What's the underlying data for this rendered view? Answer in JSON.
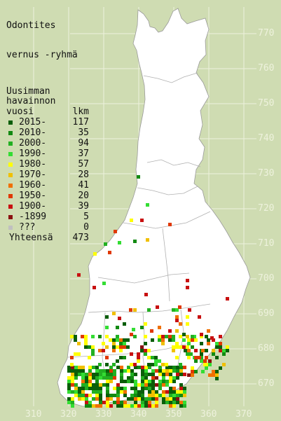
{
  "title_lines": [
    "Odontites",
    "vernus -ryhmä"
  ],
  "legend": {
    "header_lines": [
      "Uusimman",
      "havainnon"
    ],
    "col_year": "vuosi",
    "col_count": "lkm",
    "items": [
      {
        "label": "2015-",
        "count": "117",
        "color": "#0a5e0a"
      },
      {
        "label": "2010-",
        "count": "35",
        "color": "#128a12"
      },
      {
        "label": "2000-",
        "count": "94",
        "color": "#22b022"
      },
      {
        "label": "1990-",
        "count": "37",
        "color": "#33dd33"
      },
      {
        "label": "1980-",
        "count": "57",
        "color": "#ffff00"
      },
      {
        "label": "1970-",
        "count": "28",
        "color": "#f0c000"
      },
      {
        "label": "1960-",
        "count": "41",
        "color": "#f07000"
      },
      {
        "label": "1950-",
        "count": "20",
        "color": "#e03800"
      },
      {
        "label": "1900-",
        "count": "39",
        "color": "#c81010"
      },
      {
        "label": "-1899",
        "count": "5",
        "color": "#8a1010"
      },
      {
        "label": "???",
        "count": "0",
        "color": "#c0c0c0"
      }
    ],
    "total_label": "Yhteensä",
    "total_count": "473"
  },
  "axes": {
    "y_ticks": [
      "770",
      "760",
      "750",
      "740",
      "730",
      "720",
      "710",
      "700",
      "690",
      "680",
      "670"
    ],
    "x_ticks": [
      "310",
      "320",
      "330",
      "340",
      "350",
      "360",
      "370"
    ]
  },
  "colors": {
    "background": "#cfdcb2",
    "land": "#ffffff",
    "grid": "#eef2dd",
    "border": "#888888"
  }
}
